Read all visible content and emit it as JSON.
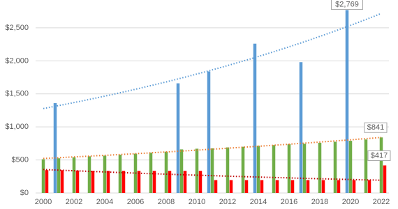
{
  "chart_data": {
    "type": "bar",
    "categories": [
      "2000",
      null,
      "2002",
      null,
      "2004",
      null,
      "2006",
      null,
      "2008",
      null,
      "2010",
      null,
      "2012",
      null,
      "2014",
      null,
      "2016",
      null,
      "2018",
      null,
      "2020",
      null,
      "2022"
    ],
    "series": [
      {
        "color": "#5b9bd5",
        "trend_color": "#5b9bd5",
        "values": [
          null,
          1360,
          null,
          null,
          null,
          null,
          null,
          null,
          null,
          1660,
          null,
          1840,
          null,
          null,
          2260,
          null,
          null,
          1980,
          null,
          null,
          2769,
          null,
          null
        ],
        "value_labels": [
          null,
          null,
          null,
          null,
          null,
          null,
          null,
          null,
          null,
          null,
          null,
          null,
          null,
          null,
          null,
          null,
          null,
          null,
          null,
          null,
          "$2,769",
          null,
          null
        ]
      },
      {
        "color": "#70ad47",
        "trend_color": "#ed7d31",
        "values": [
          510,
          525,
          540,
          555,
          565,
          580,
          595,
          610,
          625,
          660,
          670,
          675,
          690,
          700,
          715,
          725,
          740,
          745,
          760,
          775,
          790,
          810,
          841
        ],
        "value_labels": [
          null,
          null,
          null,
          null,
          null,
          null,
          null,
          null,
          null,
          null,
          null,
          null,
          null,
          null,
          null,
          null,
          null,
          null,
          null,
          null,
          null,
          null,
          "$841"
        ]
      },
      {
        "color": "#ff0000",
        "trend_color": "#c00000",
        "values": [
          345,
          345,
          340,
          335,
          335,
          335,
          335,
          335,
          335,
          335,
          335,
          195,
          195,
          195,
          195,
          195,
          195,
          195,
          195,
          195,
          195,
          195,
          417
        ],
        "value_labels": [
          null,
          null,
          null,
          null,
          null,
          null,
          null,
          null,
          null,
          null,
          null,
          null,
          null,
          null,
          null,
          null,
          null,
          null,
          null,
          null,
          null,
          null,
          "$417"
        ]
      }
    ],
    "ylim": [
      0,
      2900
    ],
    "yticks": [
      {
        "value": 0,
        "label": "$0"
      },
      {
        "value": 500,
        "label": "$500"
      },
      {
        "value": 1000,
        "label": "$1,000"
      },
      {
        "value": 1500,
        "label": "$1,500"
      },
      {
        "value": 2000,
        "label": "$2,000"
      },
      {
        "value": 2500,
        "label": "$2,500"
      }
    ],
    "grid": true,
    "trendline": "exponential"
  }
}
